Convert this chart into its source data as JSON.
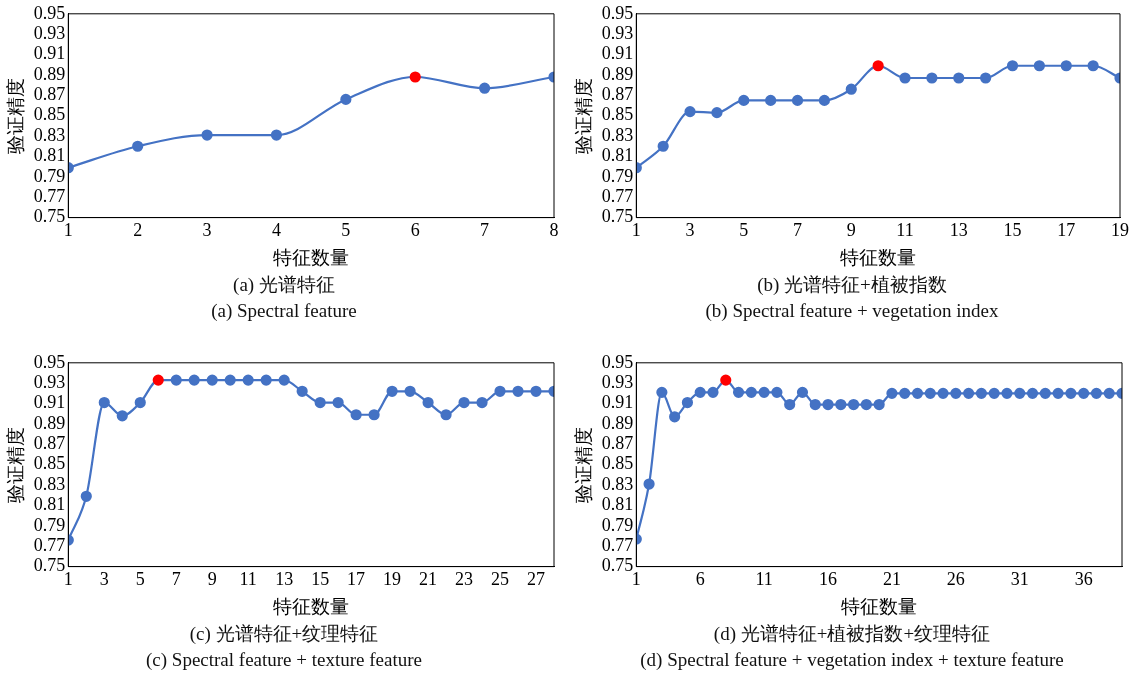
{
  "chart_data": [
    {
      "type": "line",
      "title": "(a) 光谱特征",
      "subtitle": "(a) Spectral feature",
      "xlabel": "特征数量",
      "ylabel": "验证精度",
      "x": [
        1,
        2,
        3,
        4,
        5,
        6,
        7,
        8
      ],
      "xlim": [
        1,
        8
      ],
      "xticks": [
        1,
        2,
        3,
        4,
        5,
        6,
        7,
        8
      ],
      "ylim": [
        0.75,
        0.95
      ],
      "yticks": [
        0.75,
        0.77,
        0.79,
        0.81,
        0.83,
        0.85,
        0.87,
        0.89,
        0.91,
        0.93,
        0.95
      ],
      "marker": "circle",
      "grid": false,
      "legend": false,
      "series": [
        {
          "color": "#4472c4",
          "colors": [
            "#4472c4",
            "#4472c4",
            "#4472c4",
            "#4472c4",
            "#4472c4",
            "#ff0000",
            "#4472c4",
            "#4472c4"
          ],
          "values": [
            0.799,
            0.82,
            0.831,
            0.831,
            0.866,
            0.888,
            0.877,
            0.888
          ]
        }
      ]
    },
    {
      "type": "line",
      "title": "(b) 光谱特征+植被指数",
      "subtitle": "(b) Spectral feature + vegetation index",
      "xlabel": "特征数量",
      "ylabel": "验证精度",
      "x": [
        1,
        2,
        3,
        4,
        5,
        6,
        7,
        8,
        9,
        10,
        11,
        12,
        13,
        14,
        15,
        16,
        17,
        18,
        19
      ],
      "xlim": [
        1,
        19
      ],
      "xticks": [
        1,
        3,
        5,
        7,
        9,
        11,
        13,
        15,
        17,
        19
      ],
      "ylim": [
        0.75,
        0.95
      ],
      "yticks": [
        0.75,
        0.77,
        0.79,
        0.81,
        0.83,
        0.85,
        0.87,
        0.89,
        0.91,
        0.93,
        0.95
      ],
      "marker": "circle",
      "grid": false,
      "legend": false,
      "series": [
        {
          "color": "#4472c4",
          "colors": [
            "#4472c4",
            "#4472c4",
            "#4472c4",
            "#4472c4",
            "#4472c4",
            "#4472c4",
            "#4472c4",
            "#4472c4",
            "#4472c4",
            "#ff0000",
            "#4472c4",
            "#4472c4",
            "#4472c4",
            "#4472c4",
            "#4472c4",
            "#4472c4",
            "#4472c4",
            "#4472c4",
            "#4472c4"
          ],
          "values": [
            0.799,
            0.82,
            0.854,
            0.853,
            0.865,
            0.865,
            0.865,
            0.865,
            0.876,
            0.899,
            0.887,
            0.887,
            0.887,
            0.887,
            0.899,
            0.899,
            0.899,
            0.899,
            0.887
          ]
        }
      ]
    },
    {
      "type": "line",
      "title": "(c) 光谱特征+纹理特征",
      "subtitle": "(c) Spectral feature + texture feature",
      "xlabel": "特征数量",
      "ylabel": "验证精度",
      "x": [
        1,
        2,
        3,
        4,
        5,
        6,
        7,
        8,
        9,
        10,
        11,
        12,
        13,
        14,
        15,
        16,
        17,
        18,
        19,
        20,
        21,
        22,
        23,
        24,
        25,
        26,
        27,
        28
      ],
      "xlim": [
        1,
        28
      ],
      "xticks": [
        1,
        3,
        5,
        7,
        9,
        11,
        13,
        15,
        17,
        19,
        21,
        23,
        25,
        27
      ],
      "ylim": [
        0.75,
        0.95
      ],
      "yticks": [
        0.75,
        0.77,
        0.79,
        0.81,
        0.83,
        0.85,
        0.87,
        0.89,
        0.91,
        0.93,
        0.95
      ],
      "marker": "circle",
      "grid": false,
      "legend": false,
      "series": [
        {
          "color": "#4472c4",
          "colors": [
            "#4472c4",
            "#4472c4",
            "#4472c4",
            "#4472c4",
            "#4472c4",
            "#ff0000",
            "#4472c4",
            "#4472c4",
            "#4472c4",
            "#4472c4",
            "#4472c4",
            "#4472c4",
            "#4472c4",
            "#4472c4",
            "#4472c4",
            "#4472c4",
            "#4472c4",
            "#4472c4",
            "#4472c4",
            "#4472c4",
            "#4472c4",
            "#4472c4",
            "#4472c4",
            "#4472c4",
            "#4472c4",
            "#4472c4",
            "#4472c4",
            "#4472c4"
          ],
          "values": [
            0.776,
            0.819,
            0.911,
            0.898,
            0.911,
            0.933,
            0.933,
            0.933,
            0.933,
            0.933,
            0.933,
            0.933,
            0.933,
            0.922,
            0.911,
            0.911,
            0.899,
            0.899,
            0.922,
            0.922,
            0.911,
            0.899,
            0.911,
            0.911,
            0.922,
            0.922,
            0.922,
            0.922
          ]
        }
      ]
    },
    {
      "type": "line",
      "title": "(d) 光谱特征+植被指数+纹理特征",
      "subtitle": "(d) Spectral feature + vegetation index + texture feature",
      "xlabel": "特征数量",
      "ylabel": "验证精度",
      "x": [
        1,
        2,
        3,
        4,
        5,
        6,
        7,
        8,
        9,
        10,
        11,
        12,
        13,
        14,
        15,
        16,
        17,
        18,
        19,
        20,
        21,
        22,
        23,
        24,
        25,
        26,
        27,
        28,
        29,
        30,
        31,
        32,
        33,
        34,
        35,
        36,
        37,
        38,
        39
      ],
      "xlim": [
        1,
        39
      ],
      "xticks": [
        1,
        6,
        11,
        16,
        21,
        26,
        31,
        36
      ],
      "ylim": [
        0.75,
        0.95
      ],
      "yticks": [
        0.75,
        0.77,
        0.79,
        0.81,
        0.83,
        0.85,
        0.87,
        0.89,
        0.91,
        0.93,
        0.95
      ],
      "marker": "circle",
      "grid": false,
      "legend": false,
      "series": [
        {
          "color": "#4472c4",
          "colors": [
            "#4472c4",
            "#4472c4",
            "#4472c4",
            "#4472c4",
            "#4472c4",
            "#4472c4",
            "#4472c4",
            "#ff0000",
            "#4472c4",
            "#4472c4",
            "#4472c4",
            "#4472c4",
            "#4472c4",
            "#4472c4",
            "#4472c4",
            "#4472c4",
            "#4472c4",
            "#4472c4",
            "#4472c4",
            "#4472c4",
            "#4472c4",
            "#4472c4",
            "#4472c4",
            "#4472c4",
            "#4472c4",
            "#4472c4",
            "#4472c4",
            "#4472c4",
            "#4472c4",
            "#4472c4",
            "#4472c4",
            "#4472c4",
            "#4472c4",
            "#4472c4",
            "#4472c4",
            "#4472c4",
            "#4472c4",
            "#4472c4",
            "#4472c4"
          ],
          "values": [
            0.777,
            0.831,
            0.921,
            0.897,
            0.911,
            0.921,
            0.921,
            0.933,
            0.921,
            0.921,
            0.921,
            0.921,
            0.909,
            0.921,
            0.909,
            0.909,
            0.909,
            0.909,
            0.909,
            0.909,
            0.92,
            0.92,
            0.92,
            0.92,
            0.92,
            0.92,
            0.92,
            0.92,
            0.92,
            0.92,
            0.92,
            0.92,
            0.92,
            0.92,
            0.92,
            0.92,
            0.92,
            0.92,
            0.92
          ]
        }
      ]
    }
  ]
}
